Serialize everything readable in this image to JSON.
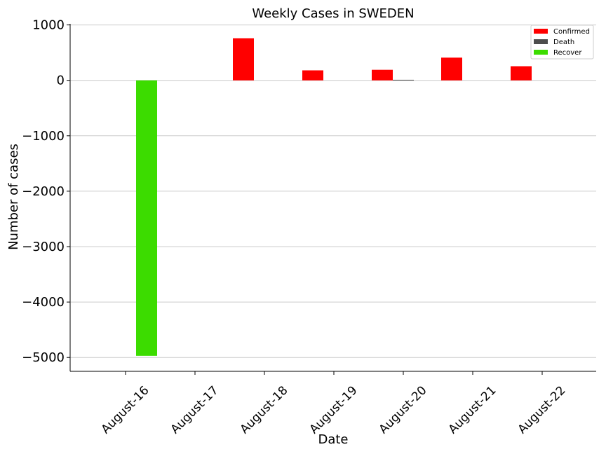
{
  "chart_data": {
    "type": "bar",
    "title": "Weekly Cases in SWEDEN",
    "xlabel": "Date",
    "ylabel": "Number of cases",
    "categories": [
      "August-16",
      "August-17",
      "August-18",
      "August-19",
      "August-20",
      "August-21",
      "August-22"
    ],
    "series": [
      {
        "name": "Confirmed",
        "color": "#ff0000",
        "values": [
          0,
          0,
          760,
          180,
          190,
          410,
          255
        ]
      },
      {
        "name": "Death",
        "color": "#4d4d4d",
        "values": [
          0,
          0,
          0,
          0,
          10,
          0,
          0
        ]
      },
      {
        "name": "Recover",
        "color": "#3cdc00",
        "values": [
          -4970,
          0,
          0,
          0,
          0,
          0,
          0
        ]
      }
    ],
    "ylim": [
      -5250,
      1020
    ],
    "yticks": [
      1000,
      0,
      -1000,
      -2000,
      -3000,
      -4000,
      -5000
    ],
    "ytick_labels": [
      "1000",
      "0",
      "−1000",
      "−2000",
      "−3000",
      "−4000",
      "−5000"
    ],
    "grid": "y",
    "legend_position": "top-right"
  }
}
